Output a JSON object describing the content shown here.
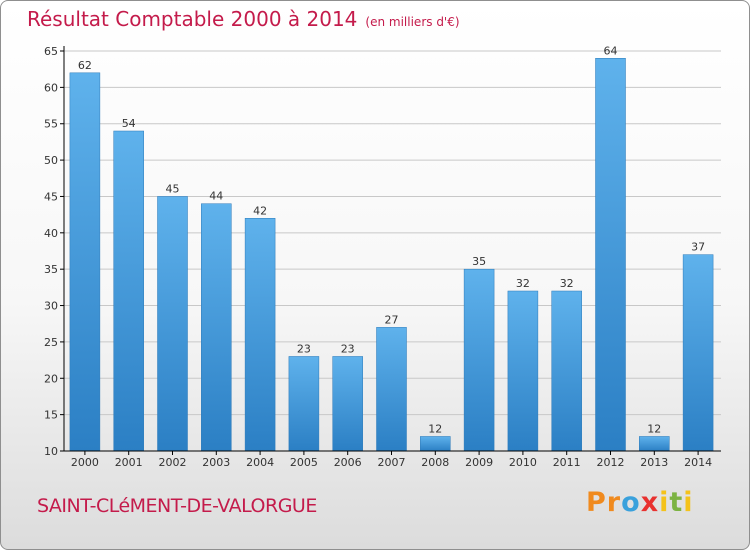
{
  "title": "Résultat Comptable 2000 à 2014",
  "subtitle": "(en milliers d'€)",
  "commune": "SAINT-CLéMENT-DE-VALORGUE",
  "logo": {
    "letters": [
      "P",
      "r",
      "o",
      "x",
      "i",
      "t",
      "i"
    ],
    "colors": [
      "#f08a1e",
      "#f08a1e",
      "#3aa1dc",
      "#e8312f",
      "#f4c21a",
      "#7cb342",
      "#f4c21a"
    ]
  },
  "colors": {
    "title": "#c41b4b",
    "bar_light": "#5fb2ec",
    "bar_dark": "#2b7fc4",
    "grid": "#c8c8c8",
    "axis": "#000000"
  },
  "chart_data": {
    "type": "bar",
    "title": "Résultat Comptable 2000 à 2014",
    "subtitle": "(en milliers d'€)",
    "xlabel": "",
    "ylabel": "",
    "categories": [
      "2000",
      "2001",
      "2002",
      "2003",
      "2004",
      "2005",
      "2006",
      "2007",
      "2008",
      "2009",
      "2010",
      "2011",
      "2012",
      "2013",
      "2014"
    ],
    "values": [
      62,
      54,
      45,
      44,
      42,
      23,
      23,
      27,
      12,
      35,
      32,
      32,
      64,
      12,
      37
    ],
    "ylim": [
      10,
      65
    ],
    "yticks": [
      10,
      15,
      20,
      25,
      30,
      35,
      40,
      45,
      50,
      55,
      60,
      65
    ],
    "grid": true,
    "data_labels": true
  }
}
